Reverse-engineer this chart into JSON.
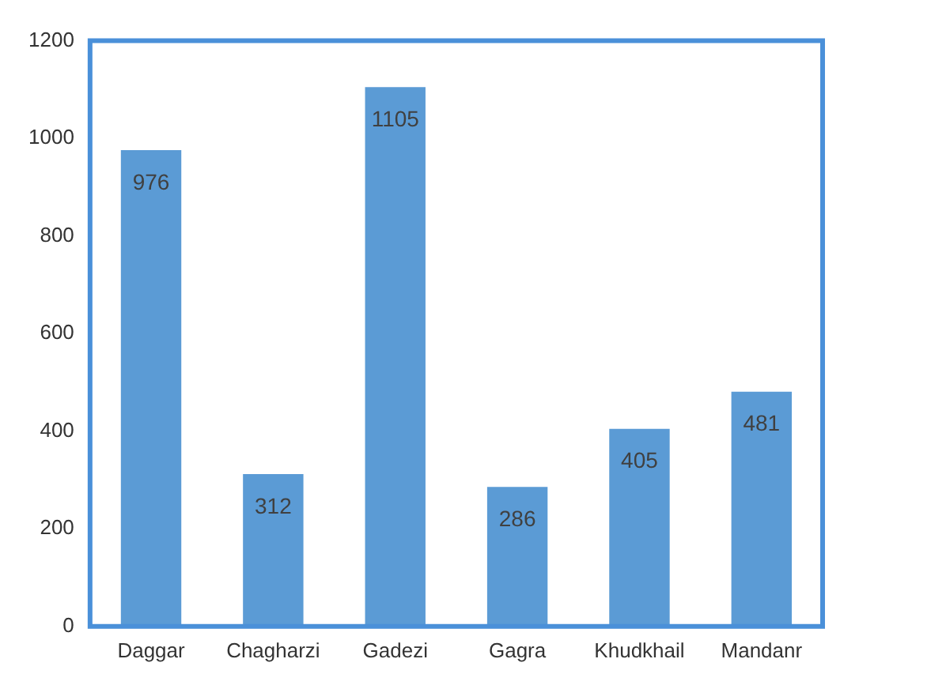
{
  "chart_data": {
    "type": "bar",
    "categories": [
      "Daggar",
      "Chagharzi",
      "Gadezi",
      "Gagra",
      "Khudkhail",
      "Mandanr"
    ],
    "values": [
      976,
      312,
      1105,
      286,
      405,
      481
    ],
    "color": "#5b9bd5",
    "ylim": [
      0,
      1200
    ],
    "yticks": [
      0,
      200,
      400,
      600,
      800,
      1000,
      1200
    ],
    "grid": false,
    "data_labels": true
  }
}
